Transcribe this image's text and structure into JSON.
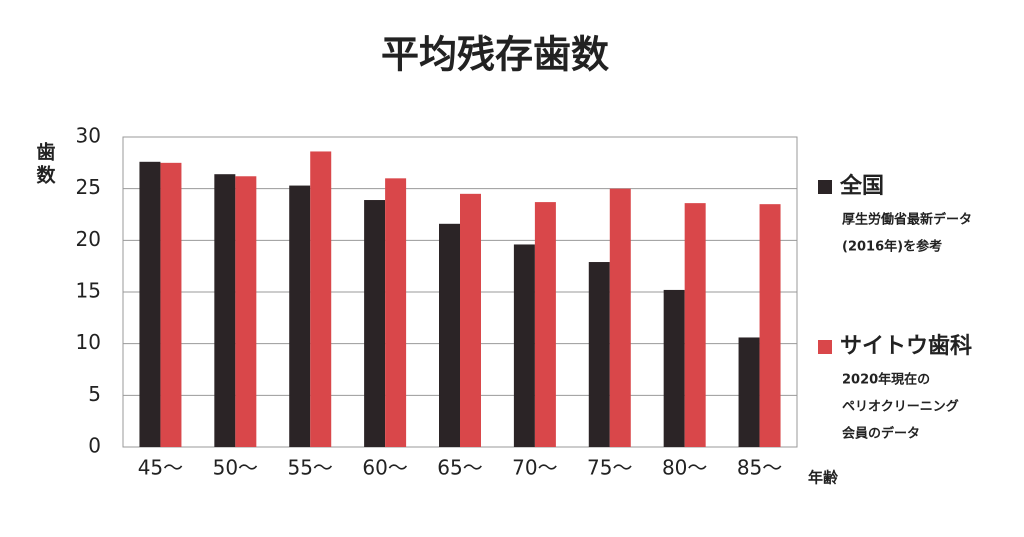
{
  "chart_data": {
    "type": "bar",
    "title": "平均残存歯数",
    "y_label": "歯数",
    "x_label": "年齢",
    "categories": [
      "45～",
      "50～",
      "55～",
      "60～",
      "65～",
      "70～",
      "75～",
      "80～",
      "85～"
    ],
    "series": [
      {
        "name": "全国",
        "color": "#2b2426",
        "note": [
          "厚生労働省最新データ",
          "(2016年)を参考"
        ],
        "values": [
          27.6,
          26.4,
          25.3,
          23.9,
          21.6,
          19.6,
          17.9,
          15.2,
          10.6
        ]
      },
      {
        "name": "サイトウ歯科",
        "color": "#d9474a",
        "note": [
          "2020年現在の",
          "ペリオクリーニング",
          "会員のデータ"
        ],
        "values": [
          27.5,
          26.2,
          28.6,
          26.0,
          24.5,
          23.7,
          25.0,
          23.6,
          23.5
        ]
      }
    ],
    "ylim": [
      0,
      30
    ],
    "yticks": [
      0,
      5,
      10,
      15,
      20,
      25,
      30
    ],
    "grid": true
  }
}
